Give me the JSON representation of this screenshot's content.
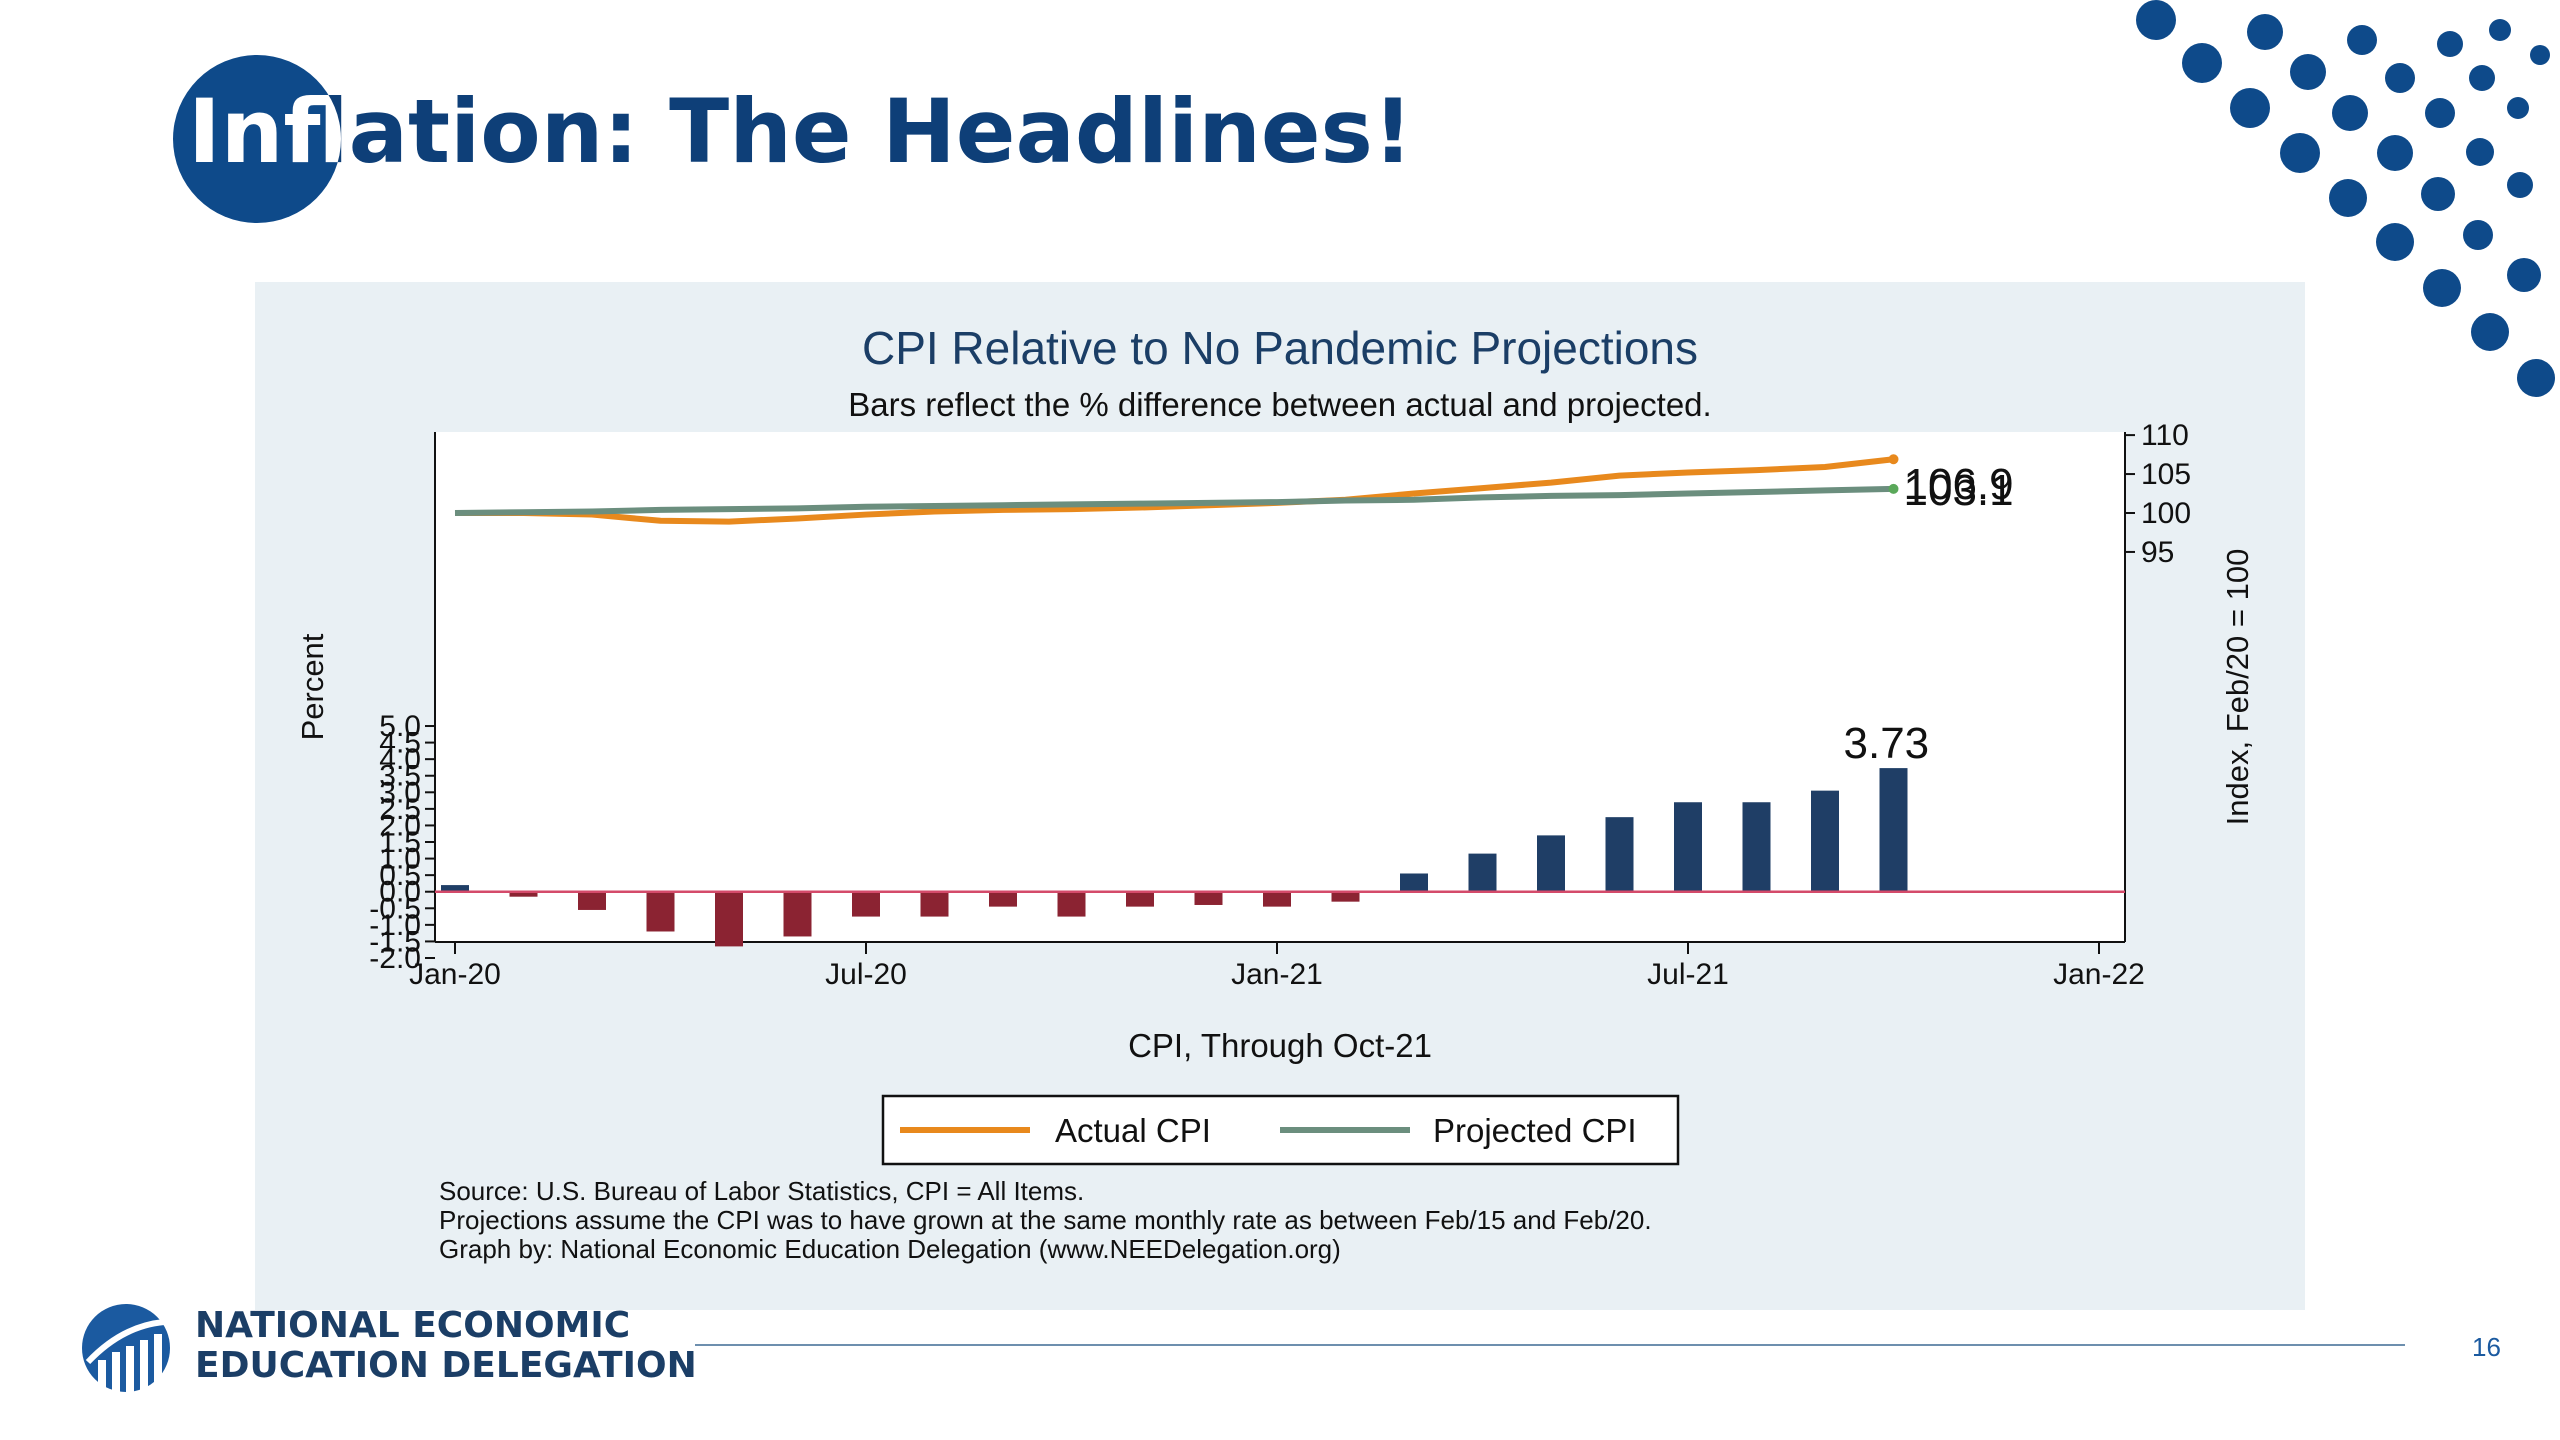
{
  "slide": {
    "title": "Inflation: The Headlines!",
    "title_circle_text": "Infl",
    "org_line1": "NATIONAL ECONOMIC",
    "org_line2": "EDUCATION DELEGATION",
    "page_number": "16",
    "brand_color": "#0e4a8a"
  },
  "chart_data": {
    "type": "bar",
    "title": "CPI Relative to No Pandemic Projections",
    "subtitle": "Bars reflect the % difference between actual and projected.",
    "xlabel": "CPI, Through Oct-21",
    "ylabel": "Percent",
    "y2label": "Index, Feb/20 = 100",
    "ylim": [
      -2.0,
      5.0
    ],
    "y2lim": [
      95,
      110
    ],
    "yticks": [
      "5.0",
      "4.5",
      "4.0",
      "3.5",
      "3.0",
      "2.5",
      "2.0",
      "1.5",
      "1.0",
      "0.5",
      "0.0",
      "-0.5",
      "-1.0",
      "-1.5",
      "-2.0"
    ],
    "y2ticks": [
      "110",
      "105",
      "100",
      "95"
    ],
    "xticks": [
      "Jan-20",
      "Jul-20",
      "Jan-21",
      "Jul-21",
      "Jan-22"
    ],
    "months": [
      "Jan-20",
      "Feb-20",
      "Mar-20",
      "Apr-20",
      "May-20",
      "Jun-20",
      "Jul-20",
      "Aug-20",
      "Sep-20",
      "Oct-20",
      "Nov-20",
      "Dec-20",
      "Jan-21",
      "Feb-21",
      "Mar-21",
      "Apr-21",
      "May-21",
      "Jun-21",
      "Jul-21",
      "Aug-21",
      "Sep-21",
      "Oct-21"
    ],
    "bars": [
      0.2,
      -0.15,
      -0.55,
      -1.2,
      -1.65,
      -1.35,
      -0.75,
      -0.75,
      -0.45,
      -0.75,
      -0.45,
      -0.4,
      -0.45,
      -0.3,
      0.55,
      1.15,
      1.7,
      2.25,
      2.7,
      2.7,
      3.05,
      3.73
    ],
    "positive_color": "#1f3e66",
    "negative_color": "#8b2332",
    "zero_line_color": "#d44a6a",
    "series": [
      {
        "name": "Actual CPI",
        "color": "#e8891d",
        "values": [
          100.0,
          100.0,
          99.8,
          99.0,
          98.9,
          99.3,
          99.8,
          100.2,
          100.4,
          100.5,
          100.7,
          101.0,
          101.3,
          101.7,
          102.5,
          103.2,
          103.9,
          104.8,
          105.2,
          105.5,
          105.9,
          106.9
        ]
      },
      {
        "name": "Projected CPI",
        "color": "#6b8e7e",
        "values": [
          100.0,
          100.1,
          100.2,
          100.4,
          100.5,
          100.6,
          100.8,
          100.9,
          101.0,
          101.1,
          101.2,
          101.3,
          101.4,
          101.6,
          101.7,
          102.0,
          102.2,
          102.3,
          102.5,
          102.7,
          102.9,
          103.1
        ]
      }
    ],
    "annotations": [
      "3.73",
      "106.9",
      "103.1"
    ],
    "legend_position": "bottom",
    "source_notes": [
      "Source: U.S. Bureau of Labor Statistics, CPI = All Items.",
      "Projections assume the CPI was to have grown at the same monthly rate as between Feb/15 and Feb/20.",
      "Graph by: National Economic Education Delegation (www.NEEDelegation.org)"
    ]
  }
}
